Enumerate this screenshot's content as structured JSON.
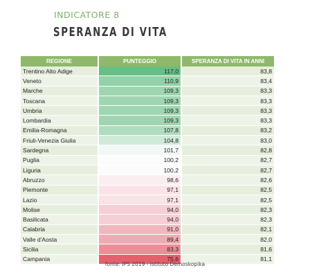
{
  "header": {
    "kicker": "INDICATORE 8",
    "title": "SPERANZA DI VITA"
  },
  "table": {
    "columns": [
      "REGIONE",
      "PUNTEGGIO",
      "SPERANZA DI VITA IN ANNI"
    ],
    "rows": [
      {
        "region": "Trentino Alto Adige",
        "score": "117,0",
        "life": "83,8",
        "color": "#66bf85"
      },
      {
        "region": "Veneto",
        "score": "110,9",
        "life": "83,4",
        "color": "#93d1a8"
      },
      {
        "region": "Marche",
        "score": "109,3",
        "life": "83,3",
        "color": "#9fd6b1"
      },
      {
        "region": "Toscana",
        "score": "109,3",
        "life": "83,3",
        "color": "#9fd6b1"
      },
      {
        "region": "Umbria",
        "score": "109,3",
        "life": "83,3",
        "color": "#9fd6b1"
      },
      {
        "region": "Lombardia",
        "score": "109,3",
        "life": "83,3",
        "color": "#9fd6b1"
      },
      {
        "region": "Emilia-Romagna",
        "score": "107,8",
        "life": "83,2",
        "color": "#b0ddbf"
      },
      {
        "region": "Friuli-Venezia Giulia",
        "score": "104,8",
        "life": "83,0",
        "color": "#d0ead8"
      },
      {
        "region": "Sardegna",
        "score": "101,7",
        "life": "82,8",
        "color": "#f3f8f6"
      },
      {
        "region": "Puglia",
        "score": "100,2",
        "life": "82,7",
        "color": "#fcfcfd"
      },
      {
        "region": "Liguria",
        "score": "100,2",
        "life": "82,7",
        "color": "#fcfcfd"
      },
      {
        "region": "Abruzzo",
        "score": "98,6",
        "life": "82,6",
        "color": "#fbeef0"
      },
      {
        "region": "Piemonte",
        "score": "97,1",
        "life": "82,5",
        "color": "#fae3e6"
      },
      {
        "region": "Lazio",
        "score": "97,1",
        "life": "82,5",
        "color": "#fae3e6"
      },
      {
        "region": "Molise",
        "score": "94,0",
        "life": "82,3",
        "color": "#f6cfd4"
      },
      {
        "region": "Basilicata",
        "score": "94,0",
        "life": "82,3",
        "color": "#f6cfd4"
      },
      {
        "region": "Calabria",
        "score": "91,0",
        "life": "82,1",
        "color": "#f2b7be"
      },
      {
        "region": "Valle d'Aosta",
        "score": "89,4",
        "life": "82,0",
        "color": "#efabb3"
      },
      {
        "region": "Sicilia",
        "score": "83,3",
        "life": "81,6",
        "color": "#eb8e98"
      },
      {
        "region": "Campania",
        "score": "75,6",
        "life": "81,1",
        "color": "#e55f6d"
      }
    ]
  },
  "footer": {
    "source": "fonte: IPS 2019 - Istituto Demoskopika"
  }
}
